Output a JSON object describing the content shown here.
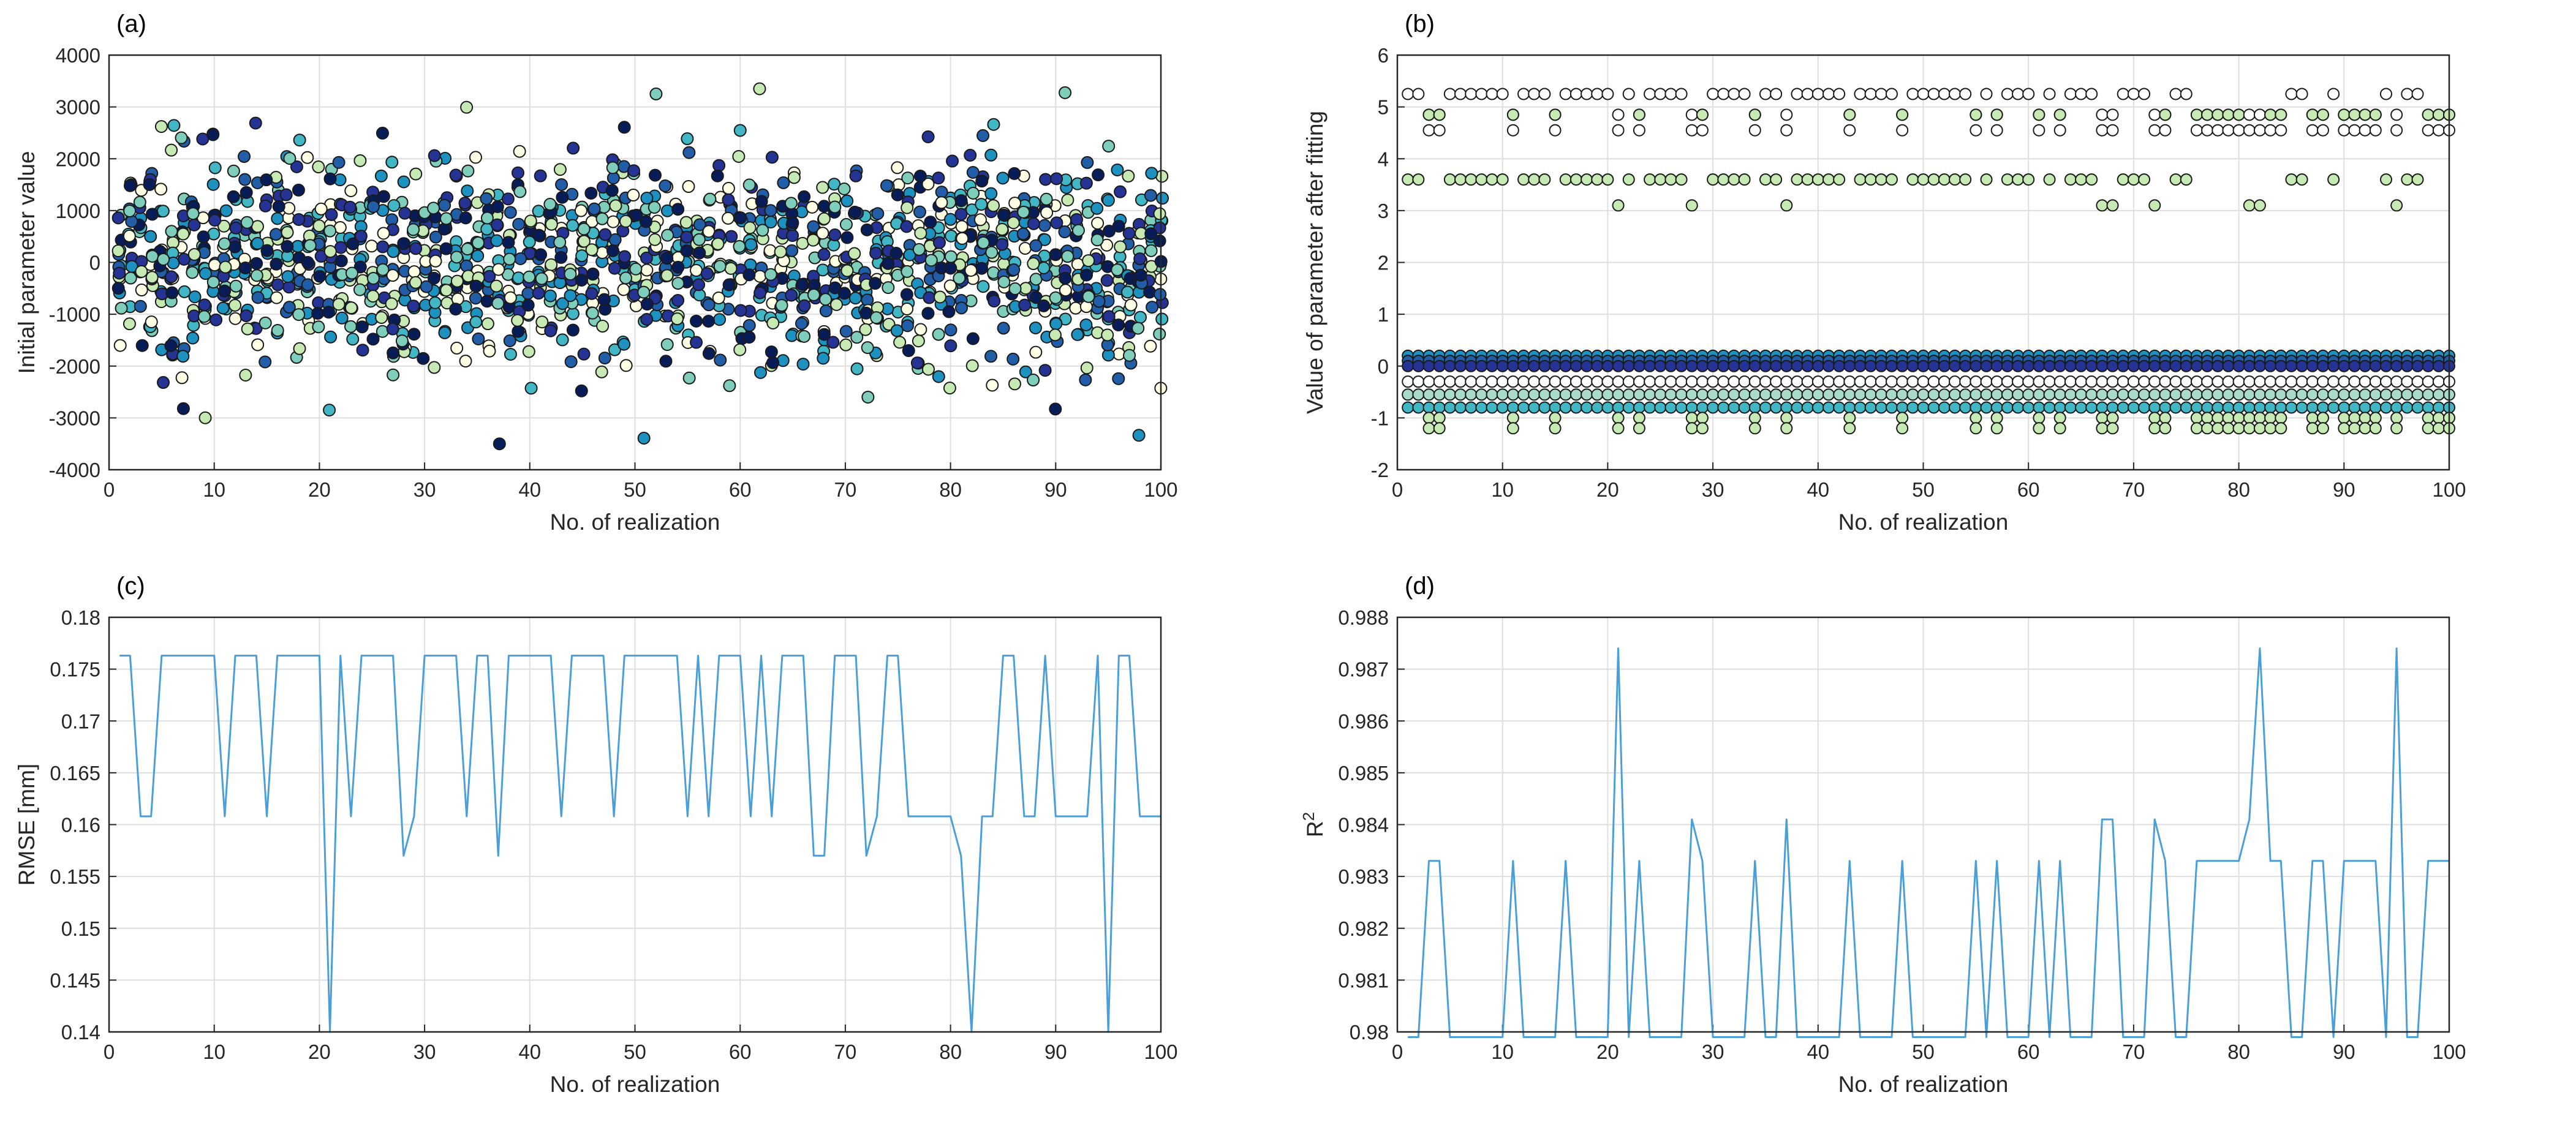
{
  "chart_data": [
    {
      "panel": "(a)",
      "type": "scatter",
      "xlabel": "No. of realization",
      "ylabel": "Initial parameter value",
      "xlim": [
        0,
        100
      ],
      "ylim": [
        -4000,
        4000
      ],
      "xticks": [
        0,
        10,
        20,
        30,
        40,
        50,
        60,
        70,
        80,
        90,
        100
      ],
      "yticks": [
        -4000,
        -3000,
        -2000,
        -1000,
        0,
        1000,
        2000,
        3000,
        4000
      ],
      "grid": true,
      "series_count": 8,
      "realizations": 100,
      "distribution": {
        "mean": 0,
        "spread_approx": 1000,
        "min_observed": -3500,
        "max_observed": 3350
      },
      "series_colors": [
        "#ffffe5",
        "#c7e9b4",
        "#7fcdbb",
        "#41b6c4",
        "#1d91c0",
        "#225ea8",
        "#253494",
        "#081d58"
      ]
    },
    {
      "panel": "(b)",
      "type": "scatter",
      "xlabel": "No. of realization",
      "ylabel": "Value of parameter after fitting",
      "xlim": [
        0,
        100
      ],
      "ylim": [
        -2,
        6
      ],
      "xticks": [
        0,
        10,
        20,
        30,
        40,
        50,
        60,
        70,
        80,
        90,
        100
      ],
      "yticks": [
        -2,
        -1,
        0,
        1,
        2,
        3,
        4,
        5,
        6
      ],
      "grid": true,
      "fitted_levels": {
        "white_high": [
          5.25,
          4.85,
          4.55,
          5.5
        ],
        "green_high": [
          3.6,
          4.85,
          3.1
        ],
        "near_zero": [
          0.2,
          0.1,
          0.0
        ],
        "negative": [
          -0.3,
          -0.55,
          -0.8,
          -1.0,
          -1.2
        ]
      }
    },
    {
      "panel": "(c)",
      "type": "line",
      "xlabel": "No. of realization",
      "ylabel": "RMSE [mm]",
      "xlim": [
        0,
        100
      ],
      "ylim": [
        0.14,
        0.18
      ],
      "xticks": [
        0,
        10,
        20,
        30,
        40,
        50,
        60,
        70,
        80,
        90,
        100
      ],
      "yticks": [
        0.14,
        0.145,
        0.15,
        0.155,
        0.16,
        0.165,
        0.17,
        0.175,
        0.18
      ],
      "grid": true,
      "color": "#4a9fd8",
      "x": [
        1,
        2,
        3,
        4,
        5,
        6,
        7,
        8,
        9,
        10,
        11,
        12,
        13,
        14,
        15,
        16,
        17,
        18,
        19,
        20,
        21,
        22,
        23,
        24,
        25,
        26,
        27,
        28,
        29,
        30,
        31,
        32,
        33,
        34,
        35,
        36,
        37,
        38,
        39,
        40,
        41,
        42,
        43,
        44,
        45,
        46,
        47,
        48,
        49,
        50,
        51,
        52,
        53,
        54,
        55,
        56,
        57,
        58,
        59,
        60,
        61,
        62,
        63,
        64,
        65,
        66,
        67,
        68,
        69,
        70,
        71,
        72,
        73,
        74,
        75,
        76,
        77,
        78,
        79,
        80,
        81,
        82,
        83,
        84,
        85,
        86,
        87,
        88,
        89,
        90,
        91,
        92,
        93,
        94,
        95,
        96,
        97,
        98,
        99,
        100
      ],
      "values": [
        0.1763,
        0.1763,
        0.1608,
        0.1608,
        0.1763,
        0.1763,
        0.1763,
        0.1763,
        0.1763,
        0.1763,
        0.1608,
        0.1763,
        0.1763,
        0.1763,
        0.1608,
        0.1763,
        0.1763,
        0.1763,
        0.1763,
        0.1763,
        0.14,
        0.1763,
        0.1608,
        0.1763,
        0.1763,
        0.1763,
        0.1763,
        0.157,
        0.1608,
        0.1763,
        0.1763,
        0.1763,
        0.1763,
        0.1608,
        0.1763,
        0.1763,
        0.157,
        0.1763,
        0.1763,
        0.1763,
        0.1763,
        0.1763,
        0.1608,
        0.1763,
        0.1763,
        0.1763,
        0.1763,
        0.1608,
        0.1763,
        0.1763,
        0.1763,
        0.1763,
        0.1763,
        0.1763,
        0.1608,
        0.1763,
        0.1608,
        0.1763,
        0.1763,
        0.1763,
        0.1608,
        0.1763,
        0.1608,
        0.1763,
        0.1763,
        0.1763,
        0.157,
        0.157,
        0.1763,
        0.1763,
        0.1763,
        0.157,
        0.1608,
        0.1763,
        0.1763,
        0.1608,
        0.1608,
        0.1608,
        0.1608,
        0.1608,
        0.157,
        0.14,
        0.1608,
        0.1608,
        0.1763,
        0.1763,
        0.1608,
        0.1608,
        0.1763,
        0.1608,
        0.1608,
        0.1608,
        0.1608,
        0.1763,
        0.14,
        0.1763,
        0.1763,
        0.1608,
        0.1608,
        0.1608
      ]
    },
    {
      "panel": "(d)",
      "type": "line",
      "xlabel": "No. of realization",
      "ylabel": "R",
      "ylabel_sup": "2",
      "xlim": [
        0,
        100
      ],
      "ylim": [
        0.98,
        0.988
      ],
      "xticks": [
        0,
        10,
        20,
        30,
        40,
        50,
        60,
        70,
        80,
        90,
        100
      ],
      "yticks": [
        0.98,
        0.981,
        0.982,
        0.983,
        0.984,
        0.985,
        0.986,
        0.987,
        0.988
      ],
      "grid": true,
      "color": "#4a9fd8",
      "x": [
        1,
        2,
        3,
        4,
        5,
        6,
        7,
        8,
        9,
        10,
        11,
        12,
        13,
        14,
        15,
        16,
        17,
        18,
        19,
        20,
        21,
        22,
        23,
        24,
        25,
        26,
        27,
        28,
        29,
        30,
        31,
        32,
        33,
        34,
        35,
        36,
        37,
        38,
        39,
        40,
        41,
        42,
        43,
        44,
        45,
        46,
        47,
        48,
        49,
        50,
        51,
        52,
        53,
        54,
        55,
        56,
        57,
        58,
        59,
        60,
        61,
        62,
        63,
        64,
        65,
        66,
        67,
        68,
        69,
        70,
        71,
        72,
        73,
        74,
        75,
        76,
        77,
        78,
        79,
        80,
        81,
        82,
        83,
        84,
        85,
        86,
        87,
        88,
        89,
        90,
        91,
        92,
        93,
        94,
        95,
        96,
        97,
        98,
        99,
        100
      ],
      "values": [
        0.9799,
        0.9799,
        0.9833,
        0.9833,
        0.9799,
        0.9799,
        0.9799,
        0.9799,
        0.9799,
        0.9799,
        0.9833,
        0.9799,
        0.9799,
        0.9799,
        0.9799,
        0.9833,
        0.9799,
        0.9799,
        0.9799,
        0.9799,
        0.9874,
        0.9799,
        0.9833,
        0.9799,
        0.9799,
        0.9799,
        0.9799,
        0.9841,
        0.9833,
        0.9799,
        0.9799,
        0.9799,
        0.9799,
        0.9833,
        0.9799,
        0.9799,
        0.9841,
        0.9799,
        0.9799,
        0.9799,
        0.9799,
        0.9799,
        0.9833,
        0.9799,
        0.9799,
        0.9799,
        0.9799,
        0.9833,
        0.9799,
        0.9799,
        0.9799,
        0.9799,
        0.9799,
        0.9799,
        0.9833,
        0.9799,
        0.9833,
        0.9799,
        0.9799,
        0.9799,
        0.9833,
        0.9799,
        0.9833,
        0.9799,
        0.9799,
        0.9799,
        0.9841,
        0.9841,
        0.9799,
        0.9799,
        0.9799,
        0.9841,
        0.9833,
        0.9799,
        0.9799,
        0.9833,
        0.9833,
        0.9833,
        0.9833,
        0.9833,
        0.9841,
        0.9874,
        0.9833,
        0.9833,
        0.9799,
        0.9799,
        0.9833,
        0.9833,
        0.9799,
        0.9833,
        0.9833,
        0.9833,
        0.9833,
        0.9799,
        0.9874,
        0.9799,
        0.9799,
        0.9833,
        0.9833,
        0.9833
      ]
    }
  ]
}
